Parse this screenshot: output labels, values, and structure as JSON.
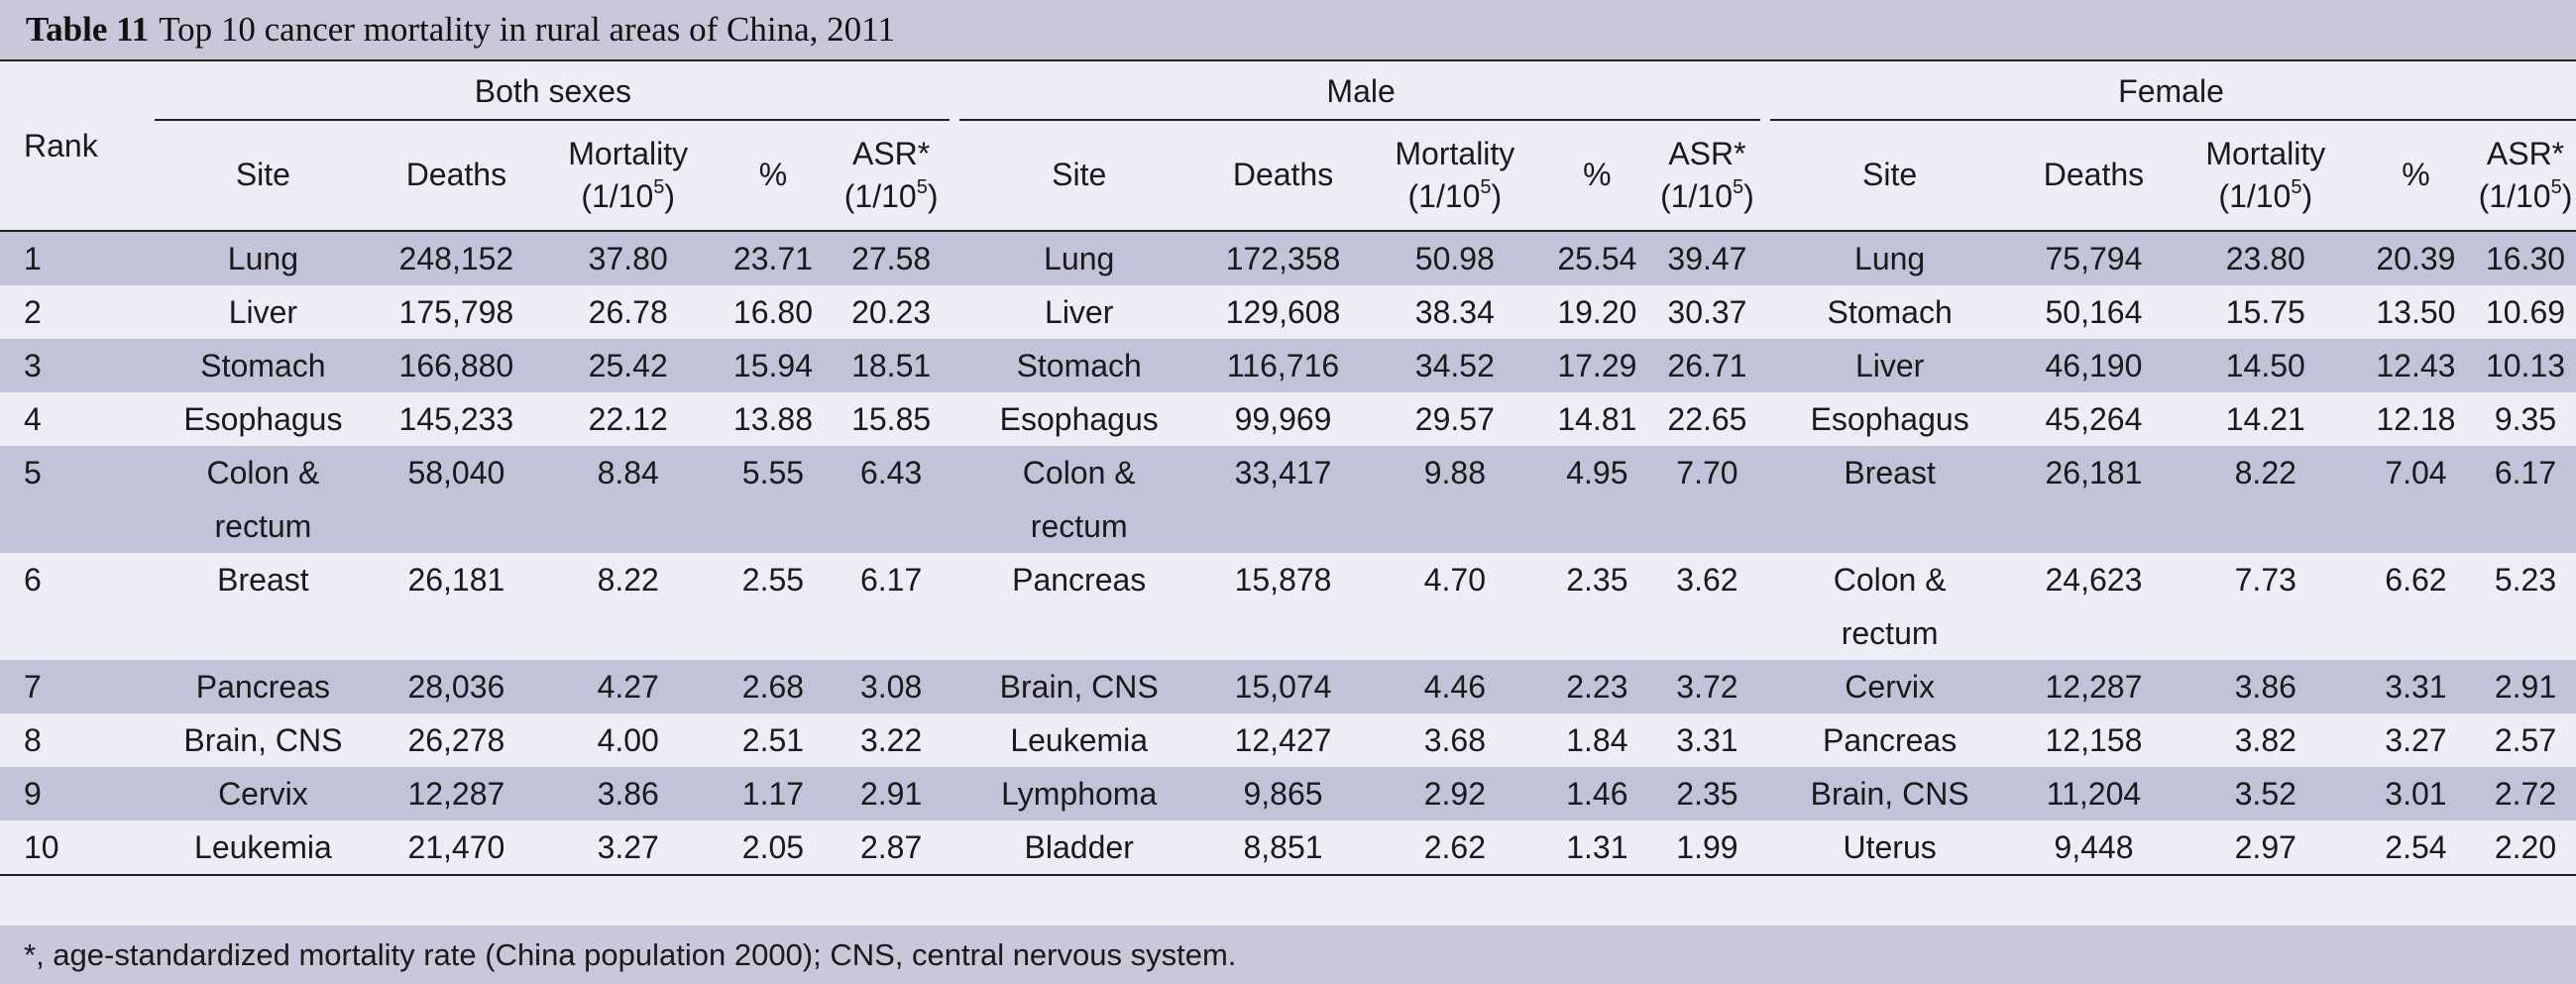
{
  "title": {
    "label": "Table 11",
    "text": "Top 10 cancer mortality in rural areas of China, 2011"
  },
  "header": {
    "rank": "Rank",
    "groups": [
      "Both sexes",
      "Male",
      "Female"
    ],
    "cols": {
      "site": "Site",
      "deaths": "Deaths",
      "mortality": "Mortality",
      "unit_prefix": "(1/10",
      "unit_exp": "5",
      "unit_suffix": ")",
      "pct": "%",
      "asr": "ASR*"
    }
  },
  "rows": [
    [
      "1",
      "Lung",
      "248,152",
      "37.80",
      "23.71",
      "27.58",
      "Lung",
      "172,358",
      "50.98",
      "25.54",
      "39.47",
      "Lung",
      "75,794",
      "23.80",
      "20.39",
      "16.30"
    ],
    [
      "2",
      "Liver",
      "175,798",
      "26.78",
      "16.80",
      "20.23",
      "Liver",
      "129,608",
      "38.34",
      "19.20",
      "30.37",
      "Stomach",
      "50,164",
      "15.75",
      "13.50",
      "10.69"
    ],
    [
      "3",
      "Stomach",
      "166,880",
      "25.42",
      "15.94",
      "18.51",
      "Stomach",
      "116,716",
      "34.52",
      "17.29",
      "26.71",
      "Liver",
      "46,190",
      "14.50",
      "12.43",
      "10.13"
    ],
    [
      "4",
      "Esophagus",
      "145,233",
      "22.12",
      "13.88",
      "15.85",
      "Esophagus",
      "99,969",
      "29.57",
      "14.81",
      "22.65",
      "Esophagus",
      "45,264",
      "14.21",
      "12.18",
      "9.35"
    ],
    [
      "5",
      "Colon &\nrectum",
      "58,040",
      "8.84",
      "5.55",
      "6.43",
      "Colon &\nrectum",
      "33,417",
      "9.88",
      "4.95",
      "7.70",
      "Breast",
      "26,181",
      "8.22",
      "7.04",
      "6.17"
    ],
    [
      "6",
      "Breast",
      "26,181",
      "8.22",
      "2.55",
      "6.17",
      "Pancreas",
      "15,878",
      "4.70",
      "2.35",
      "3.62",
      "Colon &\nrectum",
      "24,623",
      "7.73",
      "6.62",
      "5.23"
    ],
    [
      "7",
      "Pancreas",
      "28,036",
      "4.27",
      "2.68",
      "3.08",
      "Brain, CNS",
      "15,074",
      "4.46",
      "2.23",
      "3.72",
      "Cervix",
      "12,287",
      "3.86",
      "3.31",
      "2.91"
    ],
    [
      "8",
      "Brain, CNS",
      "26,278",
      "4.00",
      "2.51",
      "3.22",
      "Leukemia",
      "12,427",
      "3.68",
      "1.84",
      "3.31",
      "Pancreas",
      "12,158",
      "3.82",
      "3.27",
      "2.57"
    ],
    [
      "9",
      "Cervix",
      "12,287",
      "3.86",
      "1.17",
      "2.91",
      "Lymphoma",
      "9,865",
      "2.92",
      "1.46",
      "2.35",
      "Brain, CNS",
      "11,204",
      "3.52",
      "3.01",
      "2.72"
    ],
    [
      "10",
      "Leukemia",
      "21,470",
      "3.27",
      "2.05",
      "2.87",
      "Bladder",
      "8,851",
      "2.62",
      "1.31",
      "1.99",
      "Uterus",
      "9,448",
      "2.97",
      "2.54",
      "2.20"
    ]
  ],
  "footnote": "*, age-standardized mortality rate (China population 2000); CNS, central nervous system.",
  "colors": {
    "shade": "#c2c2d8",
    "plain": "#ededf5",
    "bar": "#c8c8da",
    "rule": "#222222"
  }
}
